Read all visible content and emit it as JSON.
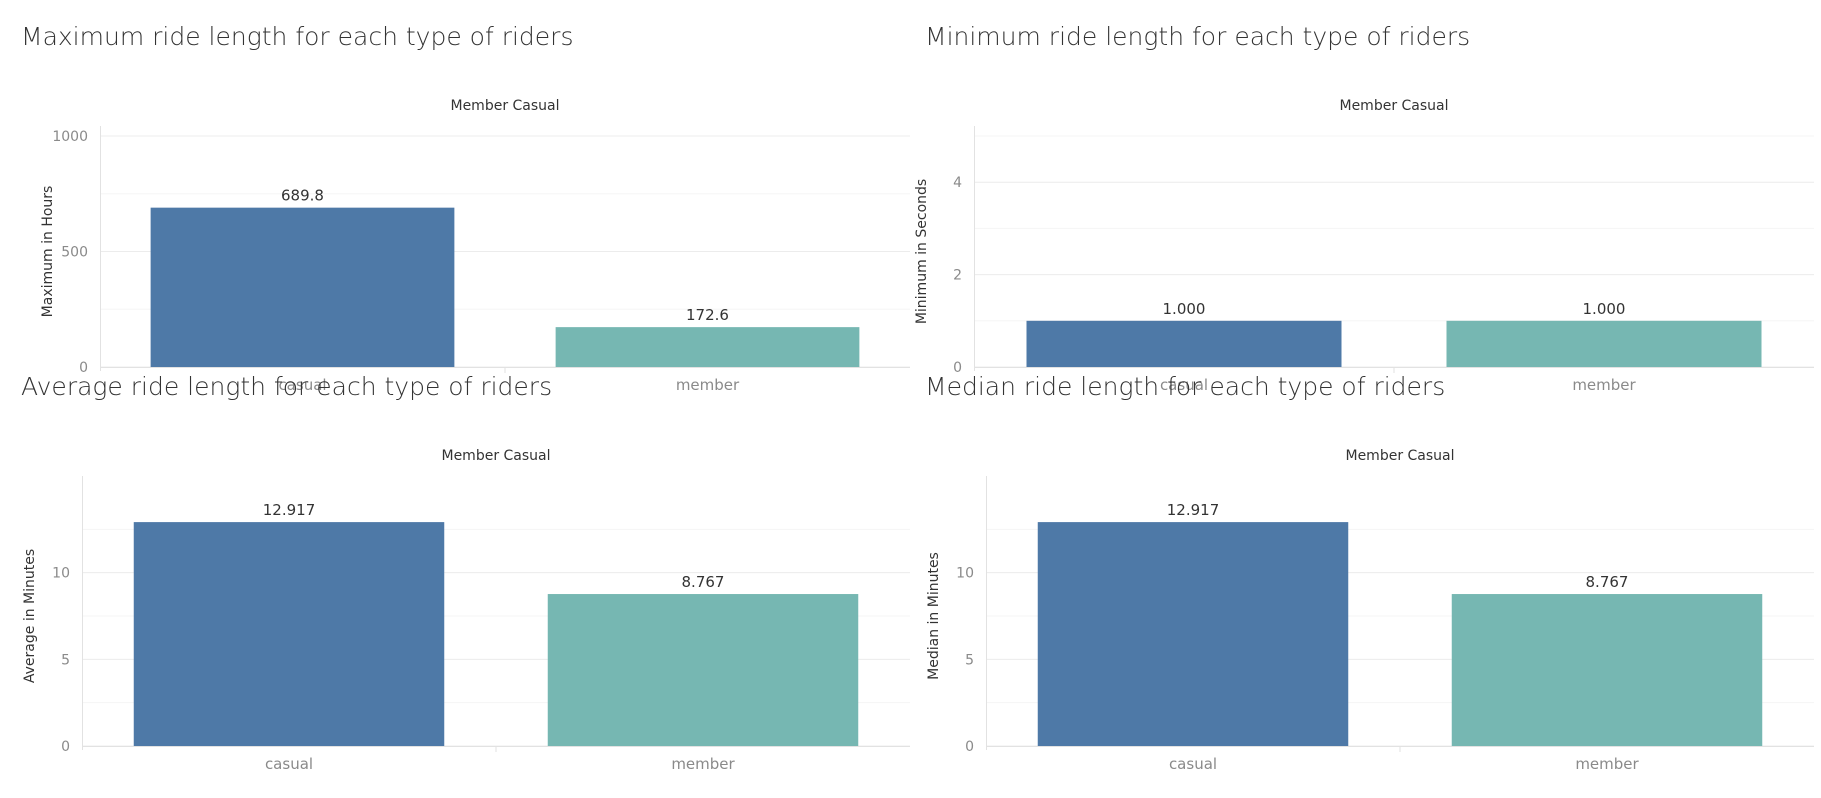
{
  "chart_data": [
    {
      "type": "bar",
      "title": "Maximum ride length for each type of riders",
      "column_header": "Member Casual",
      "ylabel": "Maximum in Hours",
      "categories": [
        "casual",
        "member"
      ],
      "values": [
        689.8,
        172.6
      ],
      "value_labels": [
        "689.8",
        "172.6"
      ],
      "ylim": [
        0,
        1000
      ],
      "yticks": [
        0,
        500,
        1000
      ],
      "grid": true,
      "colors": [
        "#4e79a7",
        "#76b7b2"
      ]
    },
    {
      "type": "bar",
      "title": "Minimum ride length for each type of riders",
      "column_header": "Member Casual",
      "ylabel": "Minimum in Seconds",
      "categories": [
        "casual",
        "member"
      ],
      "values": [
        1.0,
        1.0
      ],
      "value_labels": [
        "1.000",
        "1.000"
      ],
      "ylim": [
        0,
        5
      ],
      "yticks": [
        0,
        2,
        4
      ],
      "grid": true,
      "colors": [
        "#4e79a7",
        "#76b7b2"
      ]
    },
    {
      "type": "bar",
      "title": "Average ride length for each type of riders",
      "column_header": "Member Casual",
      "ylabel": "Average in Minutes",
      "categories": [
        "casual",
        "member"
      ],
      "values": [
        12.917,
        8.767
      ],
      "value_labels": [
        "12.917",
        "8.767"
      ],
      "ylim": [
        0,
        15
      ],
      "yticks": [
        0,
        5,
        10
      ],
      "grid": true,
      "colors": [
        "#4e79a7",
        "#76b7b2"
      ]
    },
    {
      "type": "bar",
      "title": "Median ride length for each type of riders",
      "column_header": "Member Casual",
      "ylabel": "Median in Minutes",
      "categories": [
        "casual",
        "member"
      ],
      "values": [
        12.917,
        8.767
      ],
      "value_labels": [
        "12.917",
        "8.767"
      ],
      "ylim": [
        0,
        15
      ],
      "yticks": [
        0,
        5,
        10
      ],
      "grid": true,
      "colors": [
        "#4e79a7",
        "#76b7b2"
      ]
    }
  ]
}
